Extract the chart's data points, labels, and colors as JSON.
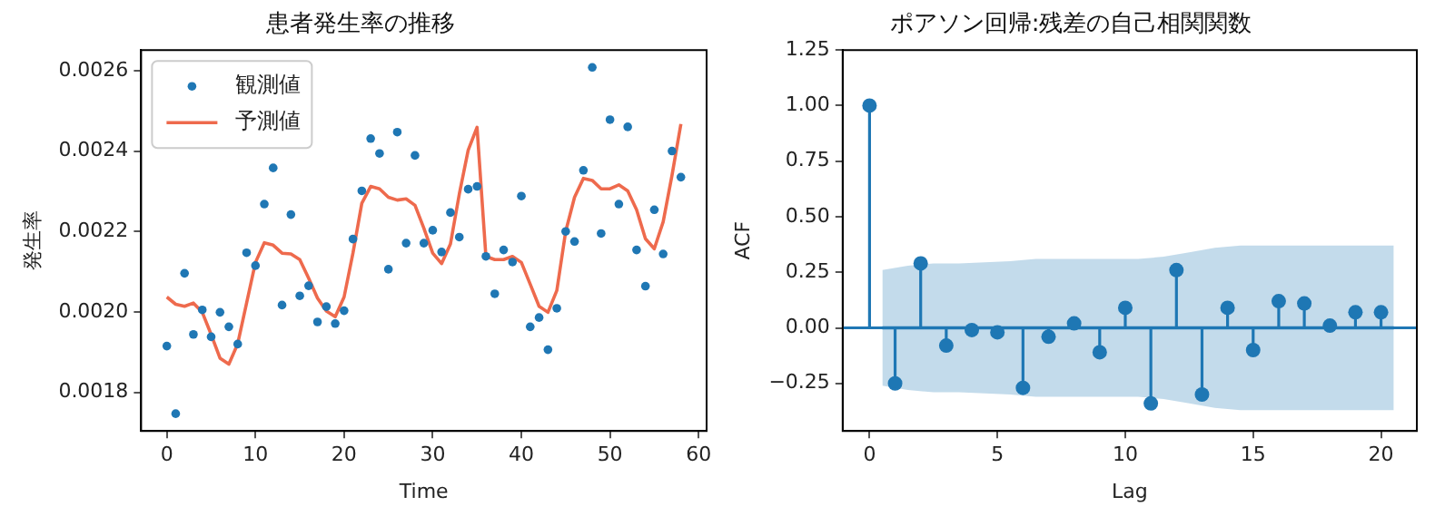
{
  "chart_data": [
    {
      "type": "scatter",
      "title": "患者発生率の推移",
      "xlabel": "Time",
      "ylabel": "発生率",
      "xlim": [
        -2.9,
        60.9
      ],
      "xticks": [
        0,
        10,
        20,
        30,
        40,
        50,
        60
      ],
      "ylim": [
        0.001704,
        0.002651
      ],
      "yticks": [
        {
          "value": 0.0018,
          "label": "0.0018"
        },
        {
          "value": 0.002,
          "label": "0.0020"
        },
        {
          "value": 0.0022,
          "label": "0.0022"
        },
        {
          "value": 0.0024,
          "label": "0.0024"
        },
        {
          "value": 0.0026,
          "label": "0.0026"
        }
      ],
      "grid": false,
      "legend": "top left",
      "x": [
        0,
        1,
        2,
        3,
        4,
        5,
        6,
        7,
        8,
        9,
        10,
        11,
        12,
        13,
        14,
        15,
        16,
        17,
        18,
        19,
        20,
        21,
        22,
        23,
        24,
        25,
        26,
        27,
        28,
        29,
        30,
        31,
        32,
        33,
        34,
        35,
        36,
        37,
        38,
        39,
        40,
        41,
        42,
        43,
        44,
        45,
        46,
        47,
        48,
        49,
        50,
        51,
        52,
        53,
        54,
        55,
        56,
        57,
        58
      ],
      "series": [
        {
          "name": "観測値",
          "marker": "circle",
          "color": "#1f77b4",
          "values": [
            0.001915,
            0.001747,
            0.002096,
            0.001944,
            0.002005,
            0.001938,
            0.001999,
            0.001963,
            0.00192,
            0.002147,
            0.002115,
            0.002268,
            0.002358,
            0.002017,
            0.002242,
            0.00204,
            0.002065,
            0.001975,
            0.002013,
            0.001971,
            0.002003,
            0.002181,
            0.002301,
            0.002431,
            0.002394,
            0.002106,
            0.002447,
            0.002171,
            0.002389,
            0.002171,
            0.002203,
            0.002149,
            0.002247,
            0.002186,
            0.002305,
            0.002312,
            0.002138,
            0.002045,
            0.002154,
            0.002124,
            0.002288,
            0.001963,
            0.001986,
            0.001906,
            0.002009,
            0.0022,
            0.002175,
            0.002352,
            0.002608,
            0.002195,
            0.002478,
            0.002268,
            0.00246,
            0.002154,
            0.002064,
            0.002254,
            0.002144,
            0.0024,
            0.002335
          ]
        },
        {
          "name": "予測値",
          "type": "line",
          "marker": "none",
          "color": "#ee6a4d",
          "values": [
            0.002037,
            0.002019,
            0.002014,
            0.002022,
            0.001999,
            0.001944,
            0.001885,
            0.00187,
            0.001921,
            0.002022,
            0.002123,
            0.002172,
            0.002166,
            0.002146,
            0.002144,
            0.00213,
            0.002084,
            0.002034,
            0.002002,
            0.001988,
            0.002037,
            0.002146,
            0.00227,
            0.002312,
            0.002306,
            0.002285,
            0.002278,
            0.002281,
            0.002265,
            0.002208,
            0.002146,
            0.00212,
            0.002169,
            0.002293,
            0.002402,
            0.002459,
            0.002138,
            0.00213,
            0.00213,
            0.002138,
            0.002123,
            0.002069,
            0.002014,
            0.001999,
            0.002053,
            0.0022,
            0.002285,
            0.002332,
            0.002327,
            0.002306,
            0.002306,
            0.002316,
            0.002301,
            0.002254,
            0.002182,
            0.002157,
            0.002224,
            0.00234,
            0.002467
          ]
        }
      ]
    },
    {
      "type": "lollipop",
      "title": "ポアソン回帰:残差の自己相関関数",
      "xlabel": "Lag",
      "ylabel": "ACF",
      "xlim": [
        -1.05,
        21.4
      ],
      "xticks": [
        0,
        5,
        10,
        15,
        20
      ],
      "ylim": [
        -0.464,
        1.25
      ],
      "yticks": [
        {
          "value": -0.25,
          "label": "−0.25"
        },
        {
          "value": 0,
          "label": "0.00"
        },
        {
          "value": 0.25,
          "label": "0.25"
        },
        {
          "value": 0.5,
          "label": "0.50"
        },
        {
          "value": 0.75,
          "label": "0.75"
        },
        {
          "value": 1,
          "label": "1.00"
        },
        {
          "value": 1.25,
          "label": "1.25"
        }
      ],
      "grid": false,
      "ref_lines": [
        {
          "axis": "y",
          "value": 0,
          "color": "#1f77b4"
        }
      ],
      "series": [
        {
          "type": "line",
          "marker": "none",
          "color": "#1f77b4",
          "x": [
            0.5,
            1.5,
            2.5,
            3.5,
            4.5,
            5.5,
            6.5,
            7.5,
            8.5,
            9.5,
            10.5,
            11.5,
            12.5,
            13.5,
            14.5,
            15.5,
            16.5,
            17.5,
            18.5,
            19.5,
            20.5
          ],
          "values": [
            0,
            0,
            0,
            0,
            0,
            0,
            0,
            0,
            0,
            0,
            0,
            0,
            0,
            0,
            0,
            0,
            0,
            0,
            0,
            0,
            0
          ],
          "upper": [
            0.26,
            0.28,
            0.29,
            0.29,
            0.295,
            0.3,
            0.31,
            0.31,
            0.31,
            0.31,
            0.31,
            0.32,
            0.34,
            0.36,
            0.37,
            0.37,
            0.37,
            0.37,
            0.37,
            0.37,
            0.37
          ],
          "lower": [
            -0.26,
            -0.28,
            -0.29,
            -0.29,
            -0.295,
            -0.3,
            -0.31,
            -0.31,
            -0.31,
            -0.31,
            -0.31,
            -0.32,
            -0.34,
            -0.36,
            -0.37,
            -0.37,
            -0.37,
            -0.37,
            -0.37,
            -0.37,
            -0.37
          ]
        },
        {
          "marker": "circle",
          "color": "#1f77b4",
          "x": [
            0,
            1,
            2,
            3,
            4,
            5,
            6,
            7,
            8,
            9,
            10,
            11,
            12,
            13,
            14,
            15,
            16,
            17,
            18,
            19,
            20
          ],
          "values": [
            1.0,
            -0.25,
            0.29,
            -0.08,
            -0.01,
            -0.02,
            -0.27,
            -0.04,
            0.02,
            -0.11,
            0.09,
            -0.34,
            0.26,
            -0.3,
            0.09,
            -0.1,
            0.12,
            0.11,
            0.01,
            0.07,
            0.07
          ]
        }
      ]
    }
  ]
}
